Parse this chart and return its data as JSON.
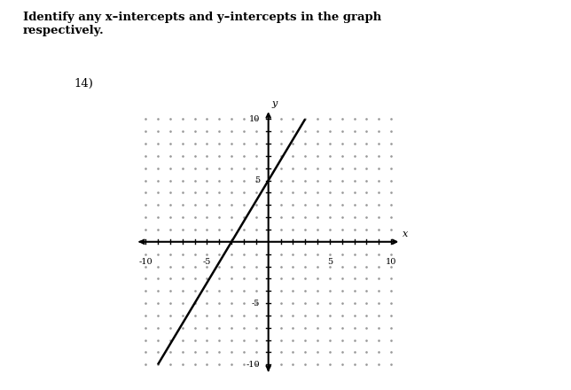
{
  "title_text": "Identify any x–intercepts and y–intercepts in the graph\nrespectively.",
  "problem_number": "14)",
  "xlim": [
    -10,
    10
  ],
  "ylim": [
    -10,
    10
  ],
  "xticks": [
    -10,
    -5,
    5,
    10
  ],
  "yticks": [
    10,
    5,
    -5,
    -10
  ],
  "tick_labels_x": [
    "-10",
    "-5",
    "5",
    "10"
  ],
  "tick_labels_y": [
    "10",
    "5",
    "-5",
    "-10"
  ],
  "line_slope": 1.6667,
  "line_intercept": 5,
  "line_color": "#000000",
  "line_width": 1.8,
  "dot_color": "#999999",
  "background_color": "#ffffff",
  "axis_color": "#000000",
  "xlabel": "x",
  "ylabel": "y"
}
